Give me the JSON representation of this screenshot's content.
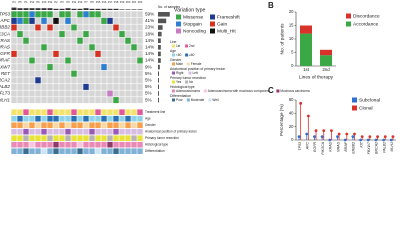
{
  "chart_data": [
    {
      "type": "oncoprint",
      "samples": [
        "P4",
        "P5",
        "P1",
        "P12",
        "P6",
        "P10",
        "P14",
        "P2",
        "P3",
        "P9",
        "P11",
        "P13",
        "P7",
        "P8",
        "P15",
        "P16",
        "P17",
        "P18",
        "P19",
        "P20",
        "P21",
        "P22"
      ],
      "genes": [
        "TP53",
        "APC",
        "ERBB2",
        "PIK3CA",
        "KRAS",
        "NRAS",
        "EGFR",
        "BRAF",
        "FBXW7",
        "RET",
        "BRCA2",
        "PALB2",
        "FLT3",
        "MLH1"
      ],
      "percent": [
        59,
        41,
        23,
        18,
        14,
        14,
        14,
        14,
        9,
        5,
        5,
        5,
        5,
        5
      ],
      "value_labels": [
        "59%",
        "41%",
        "23%",
        "18%",
        "14%",
        "14%",
        "14%",
        "14%",
        "9%",
        "5%",
        "5%",
        "5%",
        "5%",
        "5%"
      ],
      "count_axis_label": "No. of samples",
      "legend_title": "Variation type",
      "variation_types": [
        {
          "name": "Missense",
          "color": "#3aa845"
        },
        {
          "name": "Frameshift",
          "color": "#1f3a93"
        },
        {
          "name": "Stopgain",
          "color": "#2f7fd1"
        },
        {
          "name": "Gain",
          "color": "#d7301f"
        },
        {
          "name": "Noncoding",
          "color": "#c77cc4"
        },
        {
          "name": "Multi_Hit",
          "color": "#111111"
        }
      ],
      "matrix": [
        [
          "Missense",
          "Missense",
          "Missense",
          "Stopgain",
          "Missense",
          "Missense",
          "Missense",
          null,
          "Missense",
          "Missense",
          null,
          "Missense",
          "Stopgain",
          "Missense",
          "Missense",
          null,
          null,
          null,
          null,
          null,
          null,
          null
        ],
        [
          "Frameshift",
          "Stopgain",
          "Missense",
          "Frameshift",
          null,
          "Stopgain",
          null,
          "Multi_Hit",
          null,
          "Stopgain",
          null,
          null,
          null,
          null,
          null,
          "Missense",
          "Frameshift",
          null,
          null,
          null,
          null,
          null
        ],
        [
          "Gain",
          null,
          null,
          null,
          "Gain",
          null,
          "Gain",
          null,
          null,
          null,
          "Missense",
          null,
          null,
          null,
          null,
          null,
          null,
          "Gain",
          null,
          null,
          null,
          null
        ],
        [
          null,
          "Missense",
          null,
          null,
          null,
          null,
          null,
          null,
          "Missense",
          null,
          null,
          null,
          "Missense",
          null,
          null,
          null,
          null,
          null,
          "Missense",
          null,
          null,
          null
        ],
        [
          null,
          null,
          "Missense",
          null,
          null,
          null,
          null,
          null,
          null,
          null,
          null,
          "Missense",
          null,
          null,
          null,
          null,
          null,
          null,
          null,
          "Missense",
          null,
          null
        ],
        [
          null,
          null,
          null,
          null,
          null,
          "Missense",
          null,
          null,
          null,
          null,
          null,
          null,
          null,
          "Missense",
          null,
          null,
          null,
          null,
          null,
          null,
          "Missense",
          null
        ],
        [
          "Gain",
          null,
          null,
          null,
          null,
          null,
          null,
          "Gain",
          null,
          null,
          null,
          null,
          null,
          null,
          "Gain",
          null,
          null,
          null,
          null,
          null,
          null,
          null
        ],
        [
          null,
          null,
          null,
          "Missense",
          null,
          null,
          null,
          null,
          null,
          "Missense",
          null,
          null,
          null,
          null,
          null,
          null,
          null,
          null,
          null,
          null,
          null,
          "Missense"
        ],
        [
          null,
          null,
          null,
          null,
          null,
          null,
          "Missense",
          null,
          null,
          null,
          null,
          null,
          null,
          null,
          null,
          "Stopgain",
          null,
          null,
          null,
          null,
          null,
          null
        ],
        [
          null,
          null,
          null,
          null,
          null,
          null,
          null,
          null,
          null,
          null,
          "Missense",
          null,
          null,
          null,
          null,
          null,
          null,
          null,
          null,
          null,
          null,
          null
        ],
        [
          null,
          null,
          null,
          null,
          "Frameshift",
          null,
          null,
          null,
          null,
          null,
          null,
          null,
          null,
          null,
          null,
          null,
          null,
          null,
          null,
          null,
          null,
          null
        ],
        [
          null,
          null,
          null,
          null,
          null,
          null,
          null,
          null,
          null,
          null,
          null,
          null,
          "Frameshift",
          null,
          null,
          null,
          null,
          null,
          null,
          null,
          null,
          null
        ],
        [
          null,
          null,
          null,
          null,
          null,
          null,
          null,
          null,
          null,
          null,
          null,
          null,
          null,
          null,
          null,
          null,
          "Noncoding",
          null,
          null,
          null,
          null,
          null
        ],
        [
          null,
          null,
          null,
          null,
          null,
          null,
          null,
          null,
          null,
          null,
          null,
          null,
          null,
          null,
          null,
          null,
          null,
          "Missense",
          null,
          null,
          null,
          null
        ]
      ],
      "clinical": [
        {
          "name": "Treatment line",
          "legend": "Line",
          "categories": [
            {
              "name": "1st",
              "color": "#f3e36b"
            },
            {
              "name": "2nd",
              "color": "#e0589a"
            }
          ],
          "values": [
            "1st",
            "1st",
            "2nd",
            "1st",
            "1st",
            "1st",
            "2nd",
            "1st",
            "1st",
            "1st",
            "2nd",
            "1st",
            "1st",
            "1st",
            "2nd",
            "1st",
            "1st",
            "1st",
            "2nd",
            "1st",
            "1st",
            "2nd"
          ]
        },
        {
          "name": "Age",
          "legend": "Age",
          "categories": [
            {
              "name": "<60",
              "color": "#8fd3e8"
            },
            {
              "name": "≥60",
              "color": "#2b6fb3"
            }
          ],
          "values": [
            "<60",
            "≥60",
            "<60",
            "<60",
            "≥60",
            "<60",
            "≥60",
            "≥60",
            "<60",
            "<60",
            "≥60",
            "<60",
            "≥60",
            "<60",
            "<60",
            "≥60",
            "<60",
            "≥60",
            "<60",
            "≥60",
            "<60",
            "<60"
          ]
        },
        {
          "name": "Gender",
          "legend": "Gender",
          "categories": [
            {
              "name": "Male",
              "color": "#f6a04d"
            },
            {
              "name": "Female",
              "color": "#f7d9a8"
            }
          ],
          "values": [
            "Male",
            "Male",
            "Female",
            "Male",
            "Female",
            "Male",
            "Male",
            "Female",
            "Male",
            "Female",
            "Male",
            "Male",
            "Female",
            "Male",
            "Male",
            "Female",
            "Male",
            "Male",
            "Female",
            "Male",
            "Female",
            "Male"
          ]
        },
        {
          "name": "Anatomical position of primary lesion",
          "legend": "Anatomical position of primary lesion",
          "categories": [
            {
              "name": "Right",
              "color": "#9b59b6"
            },
            {
              "name": "Left",
              "color": "#d7bde2"
            }
          ],
          "values": [
            "Left",
            "Left",
            "Right",
            "Left",
            "Left",
            "Right",
            "Left",
            "Left",
            "Left",
            "Right",
            "Left",
            "Left",
            "Left",
            "Right",
            "Left",
            "Left",
            "Left",
            "Right",
            "Left",
            "Left",
            "Left",
            "Left"
          ]
        },
        {
          "name": "Primary tumor resection",
          "legend": "Primary tumor resection",
          "categories": [
            {
              "name": "Yes",
              "color": "#e8e337"
            },
            {
              "name": "No",
              "color": "#b5b5b5"
            }
          ],
          "values": [
            "Yes",
            "Yes",
            "No",
            "Yes",
            "Yes",
            "Yes",
            "No",
            "Yes",
            "Yes",
            "No",
            "Yes",
            "Yes",
            "Yes",
            "No",
            "Yes",
            "Yes",
            "No",
            "Yes",
            "Yes",
            "Yes",
            "No",
            "Yes"
          ]
        },
        {
          "name": "Histological type",
          "legend": "Histological type",
          "categories": [
            {
              "name": "Adenocarcinoma",
              "color": "#e88ab5"
            },
            {
              "name": "Adenocarcinoma with mucinous component",
              "color": "#f5c6dc"
            },
            {
              "name": "Mucinous carcinoma",
              "color": "#8e3a6b"
            }
          ],
          "values": [
            "Adenocarcinoma",
            "Adenocarcinoma",
            "Adenocarcinoma",
            "Adenocarcinoma with mucinous component",
            "Adenocarcinoma",
            "Adenocarcinoma",
            "Adenocarcinoma",
            "Mucinous carcinoma",
            "Adenocarcinoma",
            "Adenocarcinoma",
            "Adenocarcinoma",
            "Adenocarcinoma with mucinous component",
            "Adenocarcinoma",
            "Adenocarcinoma",
            "Adenocarcinoma",
            "Adenocarcinoma",
            "Mucinous carcinoma",
            "Adenocarcinoma",
            "Adenocarcinoma",
            "Adenocarcinoma",
            "Adenocarcinoma",
            "Adenocarcinoma"
          ]
        },
        {
          "name": "Differentiation",
          "legend": "Differentiation",
          "categories": [
            {
              "name": "Poor",
              "color": "#3b6e8f"
            },
            {
              "name": "Moderate",
              "color": "#7fb2d6"
            },
            {
              "name": "Well",
              "color": "#cfe4f2"
            }
          ],
          "values": [
            "Moderate",
            "Moderate",
            "Poor",
            "Moderate",
            "Moderate",
            "Well",
            "Moderate",
            "Poor",
            "Moderate",
            "Moderate",
            "Moderate",
            "Poor",
            "Moderate",
            "Moderate",
            "Well",
            "Moderate",
            "Moderate",
            "Poor",
            "Moderate",
            "Moderate",
            "Moderate",
            "Moderate"
          ]
        }
      ]
    },
    {
      "type": "bar",
      "label": "B",
      "stacked": true,
      "categories": [
        "1st",
        "2nd"
      ],
      "series": [
        {
          "name": "Discordance",
          "color": "#d9322b",
          "values": [
            3,
            2
          ]
        },
        {
          "name": "Accordance",
          "color": "#3aa845",
          "values": [
            12,
            4
          ]
        }
      ],
      "xlabel": "Lines of therapy",
      "ylabel": "No. of patients",
      "ylim": [
        0,
        20
      ],
      "yticks": [
        0,
        5,
        10,
        15,
        20
      ]
    },
    {
      "type": "lollipop",
      "label": "C",
      "categories": [
        "TP53",
        "APC",
        "EGFR",
        "PIK3CA",
        "KRAS",
        "NRAS",
        "BRAF",
        "ERBB2",
        "KIT",
        "FBXW7",
        "BRCA2",
        "PALB2",
        "MLH1"
      ],
      "series": [
        {
          "name": "Subclonal",
          "color": "#2f6fd1",
          "values": [
            5,
            9,
            5,
            5,
            0,
            5,
            0,
            5,
            0,
            0,
            0,
            0,
            0
          ]
        },
        {
          "name": "Clonal",
          "color": "#d9322b",
          "values": [
            55,
            36,
            14,
            14,
            14,
            9,
            9,
            9,
            5,
            5,
            5,
            5,
            5
          ]
        }
      ],
      "ylabel": "Percentage (%)",
      "ylim": [
        0,
        60
      ],
      "yticks": [
        0,
        20,
        40,
        60
      ]
    }
  ]
}
